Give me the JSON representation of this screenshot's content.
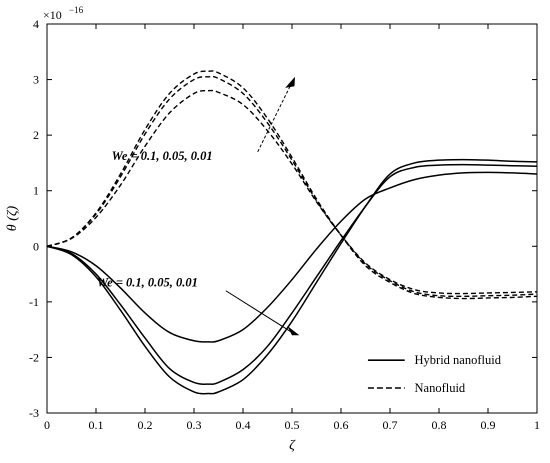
{
  "chart_data": {
    "type": "line",
    "xlabel": "ζ",
    "ylabel": "θ (ζ)",
    "xlim": [
      0,
      1
    ],
    "ylim": [
      -3,
      4
    ],
    "y_multiplier": "×10",
    "y_exponent": "−16",
    "x_ticks": [
      "0",
      "0.1",
      "0.2",
      "0.3",
      "0.4",
      "0.5",
      "0.6",
      "0.7",
      "0.8",
      "0.9",
      "1"
    ],
    "y_ticks": [
      "-3",
      "-2",
      "-1",
      "0",
      "1",
      "2",
      "3",
      "4"
    ],
    "grid": false,
    "legend_position": "bottom-right",
    "legend": [
      {
        "label": "Hybrid nanofluid",
        "style": "solid"
      },
      {
        "label": "Nanofluid",
        "style": "dashed"
      }
    ],
    "annotations": [
      {
        "text": "We = 0.1, 0.05, 0.01"
      },
      {
        "text": "We = 0.1, 0.05, 0.01"
      }
    ],
    "series": [
      {
        "style": "solid",
        "color": "#000000",
        "x": [
          0,
          0.05,
          0.1,
          0.15,
          0.2,
          0.25,
          0.3,
          0.33,
          0.35,
          0.4,
          0.45,
          0.5,
          0.55,
          0.6,
          0.65,
          0.7,
          0.75,
          0.8,
          0.85,
          0.9,
          0.95,
          1.0
        ],
        "y": [
          0,
          -0.15,
          -0.55,
          -1.15,
          -1.8,
          -2.35,
          -2.62,
          -2.65,
          -2.62,
          -2.4,
          -1.95,
          -1.35,
          -0.65,
          0.05,
          0.72,
          1.3,
          1.5,
          1.55,
          1.56,
          1.55,
          1.53,
          1.52
        ]
      },
      {
        "style": "solid",
        "color": "#000000",
        "x": [
          0,
          0.05,
          0.1,
          0.15,
          0.2,
          0.25,
          0.3,
          0.33,
          0.35,
          0.4,
          0.45,
          0.5,
          0.55,
          0.6,
          0.65,
          0.7,
          0.75,
          0.8,
          0.85,
          0.9,
          0.95,
          1.0
        ],
        "y": [
          0,
          -0.13,
          -0.5,
          -1.05,
          -1.65,
          -2.2,
          -2.45,
          -2.48,
          -2.45,
          -2.22,
          -1.8,
          -1.2,
          -0.55,
          0.1,
          0.72,
          1.25,
          1.42,
          1.46,
          1.47,
          1.46,
          1.45,
          1.44
        ]
      },
      {
        "style": "solid",
        "color": "#000000",
        "x": [
          0,
          0.05,
          0.1,
          0.15,
          0.2,
          0.25,
          0.3,
          0.33,
          0.35,
          0.4,
          0.45,
          0.5,
          0.55,
          0.6,
          0.65,
          0.7,
          0.75,
          0.8,
          0.85,
          0.9,
          0.95,
          1.0
        ],
        "y": [
          0,
          -0.1,
          -0.35,
          -0.75,
          -1.2,
          -1.55,
          -1.7,
          -1.72,
          -1.7,
          -1.5,
          -1.1,
          -0.6,
          -0.05,
          0.45,
          0.85,
          1.05,
          1.2,
          1.28,
          1.32,
          1.33,
          1.32,
          1.3
        ]
      },
      {
        "style": "dashed",
        "color": "#000000",
        "x": [
          0,
          0.05,
          0.1,
          0.15,
          0.2,
          0.25,
          0.3,
          0.33,
          0.35,
          0.4,
          0.45,
          0.5,
          0.55,
          0.6,
          0.65,
          0.7,
          0.75,
          0.8,
          0.85,
          0.9,
          0.95,
          1.0
        ],
        "y": [
          0,
          0.15,
          0.6,
          1.3,
          2.1,
          2.75,
          3.1,
          3.15,
          3.12,
          2.85,
          2.3,
          1.6,
          0.85,
          0.2,
          -0.35,
          -0.65,
          -0.85,
          -0.92,
          -0.94,
          -0.93,
          -0.92,
          -0.9
        ]
      },
      {
        "style": "dashed",
        "color": "#000000",
        "x": [
          0,
          0.05,
          0.1,
          0.15,
          0.2,
          0.25,
          0.3,
          0.33,
          0.35,
          0.4,
          0.45,
          0.5,
          0.55,
          0.6,
          0.65,
          0.7,
          0.75,
          0.8,
          0.85,
          0.9,
          0.95,
          1.0
        ],
        "y": [
          0,
          0.15,
          0.58,
          1.25,
          2.02,
          2.65,
          3.0,
          3.05,
          3.02,
          2.75,
          2.22,
          1.55,
          0.82,
          0.2,
          -0.32,
          -0.62,
          -0.82,
          -0.89,
          -0.9,
          -0.89,
          -0.88,
          -0.86
        ]
      },
      {
        "style": "dashed",
        "color": "#000000",
        "x": [
          0,
          0.05,
          0.1,
          0.15,
          0.2,
          0.25,
          0.3,
          0.33,
          0.35,
          0.4,
          0.45,
          0.5,
          0.55,
          0.6,
          0.65,
          0.7,
          0.75,
          0.8,
          0.85,
          0.9,
          0.95,
          1.0
        ],
        "y": [
          0,
          0.14,
          0.52,
          1.1,
          1.8,
          2.4,
          2.75,
          2.8,
          2.77,
          2.55,
          2.08,
          1.48,
          0.8,
          0.2,
          -0.3,
          -0.6,
          -0.78,
          -0.84,
          -0.85,
          -0.84,
          -0.83,
          -0.82
        ]
      }
    ]
  }
}
